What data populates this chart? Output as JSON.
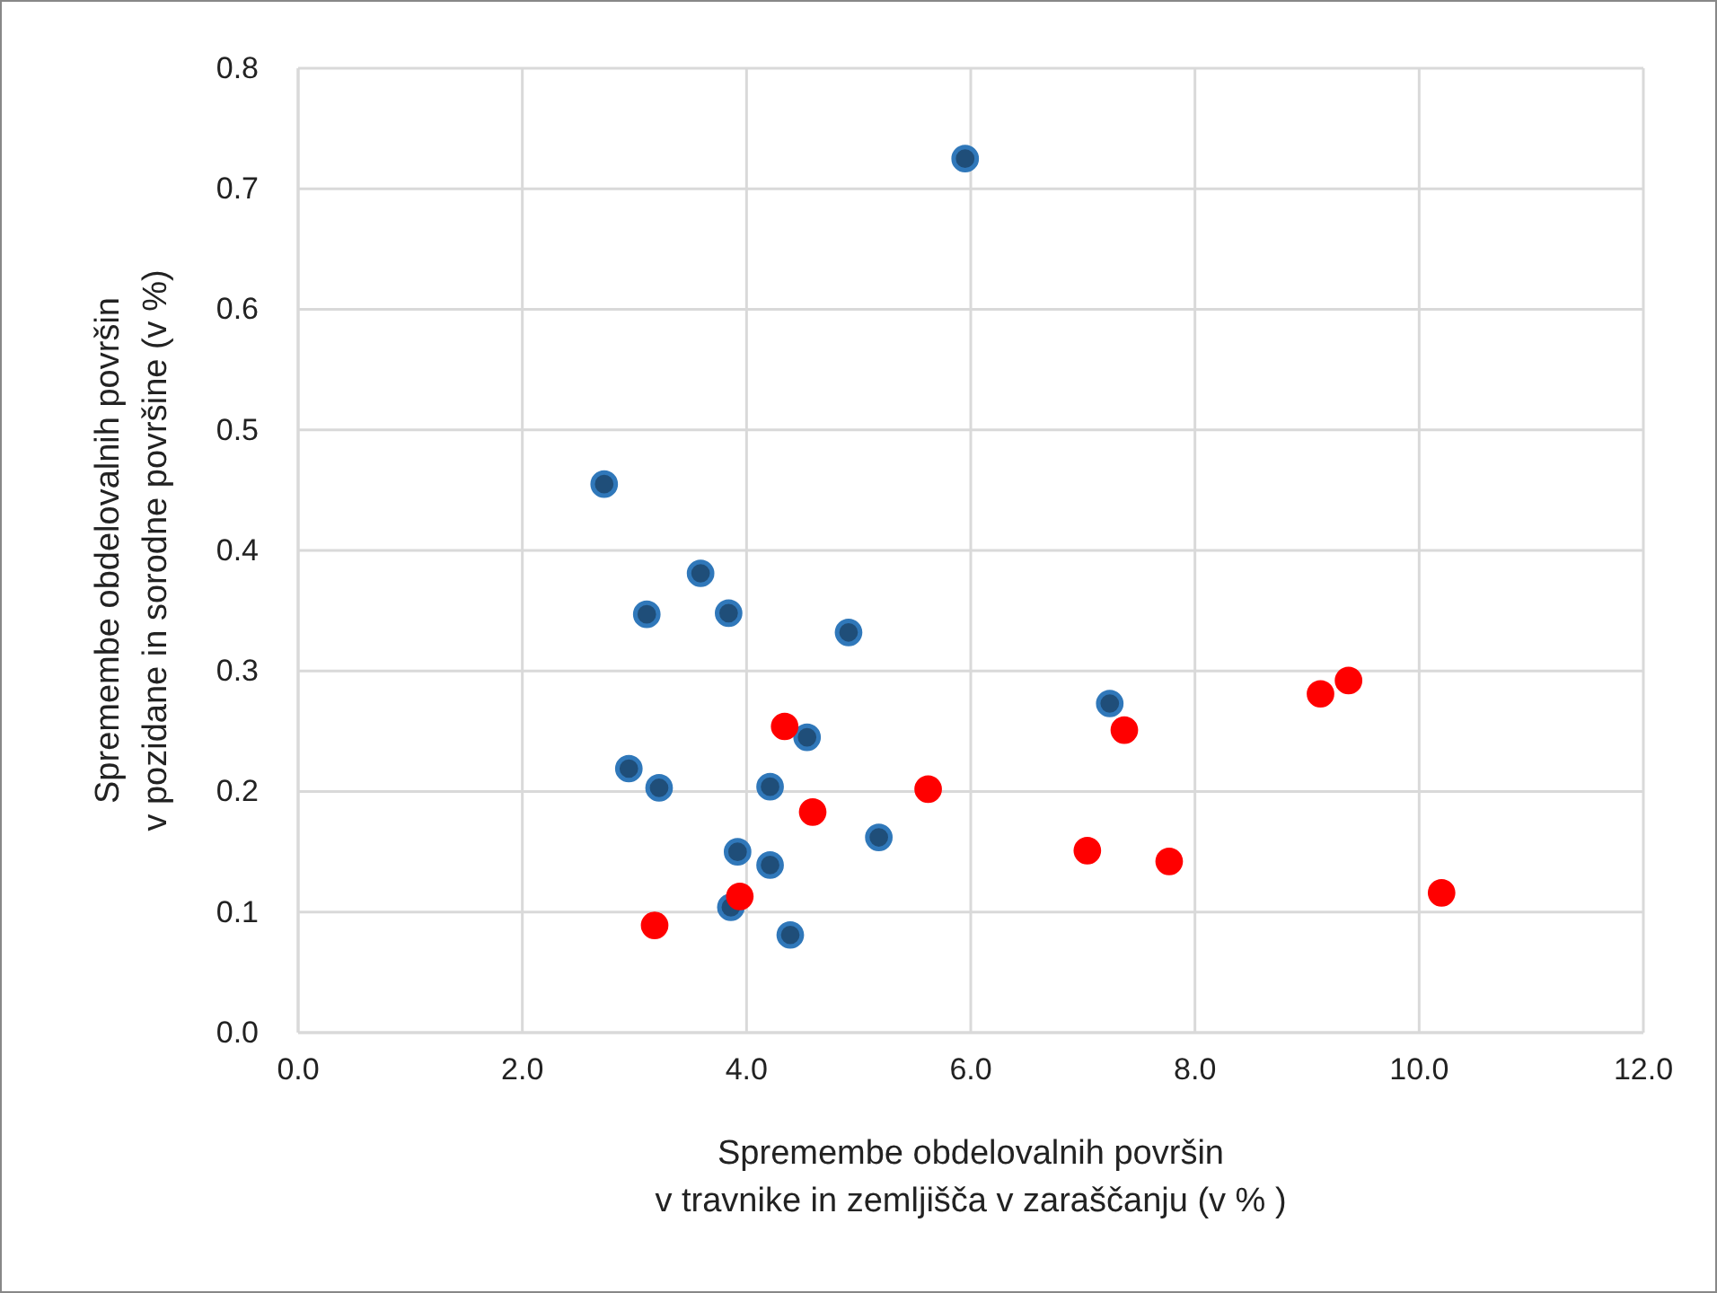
{
  "chart_data": {
    "type": "scatter",
    "xlabel": "Spremembe obdelovalnih površin\nv travnike in zemljišča v zaraščanju (v % )",
    "ylabel": "Spremembe obdelovalnih površin\nv pozidane in sorodne površine (v %)",
    "xlim": [
      0,
      12
    ],
    "xticks": [
      {
        "value": 0,
        "label": "0.0"
      },
      {
        "value": 2,
        "label": "2.0"
      },
      {
        "value": 4,
        "label": "4.0"
      },
      {
        "value": 6,
        "label": "6.0"
      },
      {
        "value": 8,
        "label": "8.0"
      },
      {
        "value": 10,
        "label": "10.0"
      },
      {
        "value": 12,
        "label": "12.0"
      }
    ],
    "ylim": [
      0,
      0.8
    ],
    "yticks": [
      {
        "value": 0,
        "label": "0.0"
      },
      {
        "value": 0.1,
        "label": "0.1"
      },
      {
        "value": 0.2,
        "label": "0.2"
      },
      {
        "value": 0.3,
        "label": "0.3"
      },
      {
        "value": 0.4,
        "label": "0.4"
      },
      {
        "value": 0.5,
        "label": "0.5"
      },
      {
        "value": 0.6,
        "label": "0.6"
      },
      {
        "value": 0.7,
        "label": "0.7"
      },
      {
        "value": 0.8,
        "label": "0.8"
      }
    ],
    "grid": true,
    "marker": "circle",
    "series": [
      {
        "color": "#1f4e79",
        "x": [
          2.73,
          3.59,
          3.11,
          3.84,
          4.91,
          4.54,
          2.95,
          3.22,
          4.21,
          5.18,
          3.92,
          4.21,
          3.86,
          4.39,
          5.95,
          7.24
        ],
        "values": [
          0.455,
          0.381,
          0.347,
          0.348,
          0.332,
          0.245,
          0.219,
          0.203,
          0.204,
          0.162,
          0.15,
          0.139,
          0.104,
          0.081,
          0.725,
          0.273
        ]
      },
      {
        "color": "#ff0000",
        "x": [
          4.34,
          4.59,
          5.62,
          3.94,
          3.18,
          7.04,
          7.77,
          7.37,
          9.12,
          9.37,
          10.2
        ],
        "values": [
          0.254,
          0.183,
          0.202,
          0.113,
          0.089,
          0.151,
          0.142,
          0.251,
          0.281,
          0.292,
          0.116
        ]
      }
    ]
  }
}
